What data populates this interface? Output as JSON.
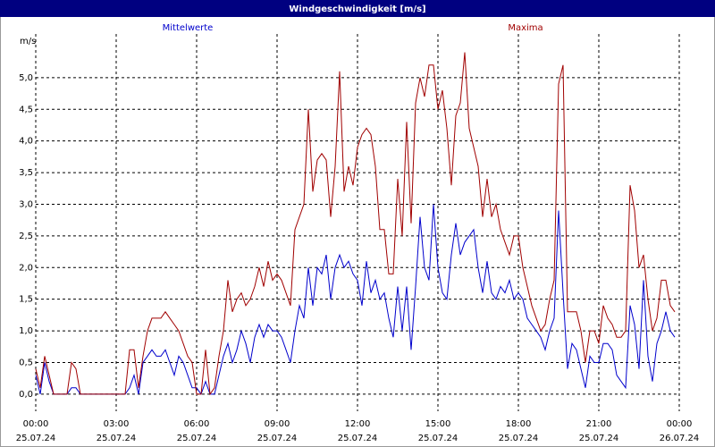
{
  "chart_data": {
    "type": "line",
    "title": "Windgeschwindigkeit [m/s]",
    "y_unit": "m/s",
    "x": [
      0,
      10,
      20,
      30,
      40,
      50,
      60,
      70,
      80,
      90,
      100,
      110,
      120,
      130,
      140,
      150,
      160,
      170,
      180,
      190,
      200,
      210,
      220,
      230,
      240,
      250,
      260,
      270,
      280,
      290,
      300,
      310,
      320,
      330,
      340,
      350,
      360,
      370,
      380,
      390,
      400,
      410,
      420,
      430,
      440,
      450,
      460,
      470,
      480,
      490,
      500,
      510,
      520,
      530,
      540,
      550,
      560,
      570,
      580,
      590,
      600,
      610,
      620,
      630,
      640,
      650,
      660,
      670,
      680,
      690,
      700,
      710,
      720,
      730,
      740,
      750,
      760,
      770,
      780,
      790,
      800,
      810,
      820,
      830,
      840,
      850,
      860,
      870,
      880,
      890,
      900,
      910,
      920,
      930,
      940,
      950,
      960,
      970,
      980,
      990,
      1000,
      1010,
      1020,
      1030,
      1040,
      1050,
      1060,
      1070,
      1080,
      1090,
      1100,
      1110,
      1120,
      1130,
      1140,
      1150,
      1160,
      1170,
      1180,
      1190,
      1200,
      1210,
      1220,
      1230,
      1240,
      1250,
      1260,
      1270,
      1280,
      1290,
      1300,
      1310,
      1320,
      1330,
      1340,
      1350,
      1360,
      1370,
      1380,
      1390,
      1400,
      1410,
      1420,
      1430
    ],
    "series": [
      {
        "name": "Mittelwerte",
        "color": "#0000cc",
        "values": [
          0.3,
          0,
          0.5,
          0.2,
          0,
          0,
          0,
          0,
          0.1,
          0.1,
          0,
          0,
          0,
          0,
          0,
          0,
          0,
          0,
          0,
          0,
          0,
          0.1,
          0.3,
          0,
          0.5,
          0.6,
          0.7,
          0.6,
          0.6,
          0.7,
          0.5,
          0.3,
          0.6,
          0.5,
          0.3,
          0.1,
          0.1,
          0,
          0.2,
          0,
          0,
          0.3,
          0.6,
          0.8,
          0.5,
          0.7,
          1.0,
          0.8,
          0.5,
          0.9,
          1.1,
          0.9,
          1.1,
          1.0,
          1.0,
          0.9,
          0.7,
          0.5,
          1.0,
          1.4,
          1.2,
          2.0,
          1.4,
          2.0,
          1.9,
          2.2,
          1.5,
          2.0,
          2.2,
          2.0,
          2.1,
          1.9,
          1.8,
          1.4,
          2.1,
          1.6,
          1.8,
          1.5,
          1.6,
          1.2,
          0.9,
          1.7,
          1.0,
          1.7,
          0.7,
          1.7,
          2.8,
          2.0,
          1.8,
          3.0,
          2.0,
          1.6,
          1.5,
          2.2,
          2.7,
          2.2,
          2.4,
          2.5,
          2.6,
          2.0,
          1.6,
          2.1,
          1.6,
          1.5,
          1.7,
          1.6,
          1.8,
          1.5,
          1.6,
          1.5,
          1.2,
          1.1,
          1.0,
          0.9,
          0.7,
          1.0,
          1.2,
          2.9,
          1.6,
          0.4,
          0.8,
          0.7,
          0.4,
          0.1,
          0.6,
          0.5,
          0.5,
          0.8,
          0.8,
          0.7,
          0.3,
          0.2,
          0.1,
          1.4,
          1.1,
          0.4,
          1.8,
          0.6,
          0.2,
          0.8,
          1.0,
          1.3,
          1.0,
          0.9
        ]
      },
      {
        "name": "Maxima",
        "color": "#a00000",
        "values": [
          0.4,
          0.1,
          0.6,
          0.3,
          0,
          0,
          0,
          0,
          0.5,
          0.4,
          0,
          0,
          0,
          0,
          0,
          0,
          0,
          0,
          0,
          0,
          0,
          0.7,
          0.7,
          0.1,
          0.6,
          1.0,
          1.2,
          1.2,
          1.2,
          1.3,
          1.2,
          1.1,
          1.0,
          0.8,
          0.6,
          0.5,
          0,
          0,
          0.7,
          0,
          0.1,
          0.6,
          1.0,
          1.8,
          1.3,
          1.5,
          1.6,
          1.4,
          1.5,
          1.7,
          2.0,
          1.7,
          2.1,
          1.8,
          1.9,
          1.8,
          1.6,
          1.4,
          2.6,
          2.8,
          3.0,
          4.5,
          3.2,
          3.7,
          3.8,
          3.7,
          2.8,
          3.6,
          5.1,
          3.2,
          3.6,
          3.3,
          3.9,
          4.1,
          4.2,
          4.1,
          3.6,
          2.6,
          2.6,
          1.9,
          1.9,
          3.4,
          2.5,
          4.3,
          2.7,
          4.6,
          5.0,
          4.7,
          5.2,
          5.2,
          4.5,
          4.8,
          4.2,
          3.3,
          4.4,
          4.6,
          5.4,
          4.2,
          3.9,
          3.6,
          2.8,
          3.4,
          2.8,
          3.0,
          2.6,
          2.4,
          2.2,
          2.5,
          2.5,
          2.0,
          1.7,
          1.4,
          1.2,
          1.0,
          1.1,
          1.5,
          1.8,
          4.9,
          5.2,
          1.3,
          1.3,
          1.3,
          1.0,
          0.5,
          1.0,
          1.0,
          0.8,
          1.4,
          1.2,
          1.1,
          0.9,
          0.9,
          1.0,
          3.3,
          2.9,
          2.0,
          2.2,
          1.5,
          1.0,
          1.2,
          1.8,
          1.8,
          1.4,
          1.3
        ]
      }
    ],
    "xlim": [
      0,
      1440
    ],
    "xticks": [
      {
        "value": 0,
        "label": "00:00",
        "date": "25.07.24"
      },
      {
        "value": 180,
        "label": "03:00",
        "date": "25.07.24"
      },
      {
        "value": 360,
        "label": "06:00",
        "date": "25.07.24"
      },
      {
        "value": 540,
        "label": "09:00",
        "date": "25.07.24"
      },
      {
        "value": 720,
        "label": "12:00",
        "date": "25.07.24"
      },
      {
        "value": 900,
        "label": "15:00",
        "date": "25.07.24"
      },
      {
        "value": 1080,
        "label": "18:00",
        "date": "25.07.24"
      },
      {
        "value": 1260,
        "label": "21:00",
        "date": "25.07.24"
      },
      {
        "value": 1440,
        "label": "00:00",
        "date": "26.07.24"
      }
    ],
    "ylim": [
      -0.27,
      5.69
    ],
    "yticks": [
      {
        "value": 0,
        "label": "0,0"
      },
      {
        "value": 0.5,
        "label": "0,5"
      },
      {
        "value": 1,
        "label": "1,0"
      },
      {
        "value": 1.5,
        "label": "1,5"
      },
      {
        "value": 2,
        "label": "2,0"
      },
      {
        "value": 2.5,
        "label": "2,5"
      },
      {
        "value": 3,
        "label": "3,0"
      },
      {
        "value": 3.5,
        "label": "3,5"
      },
      {
        "value": 4,
        "label": "4,0"
      },
      {
        "value": 4.5,
        "label": "4,5"
      },
      {
        "value": 5,
        "label": "5,0"
      }
    ],
    "grid": true
  }
}
